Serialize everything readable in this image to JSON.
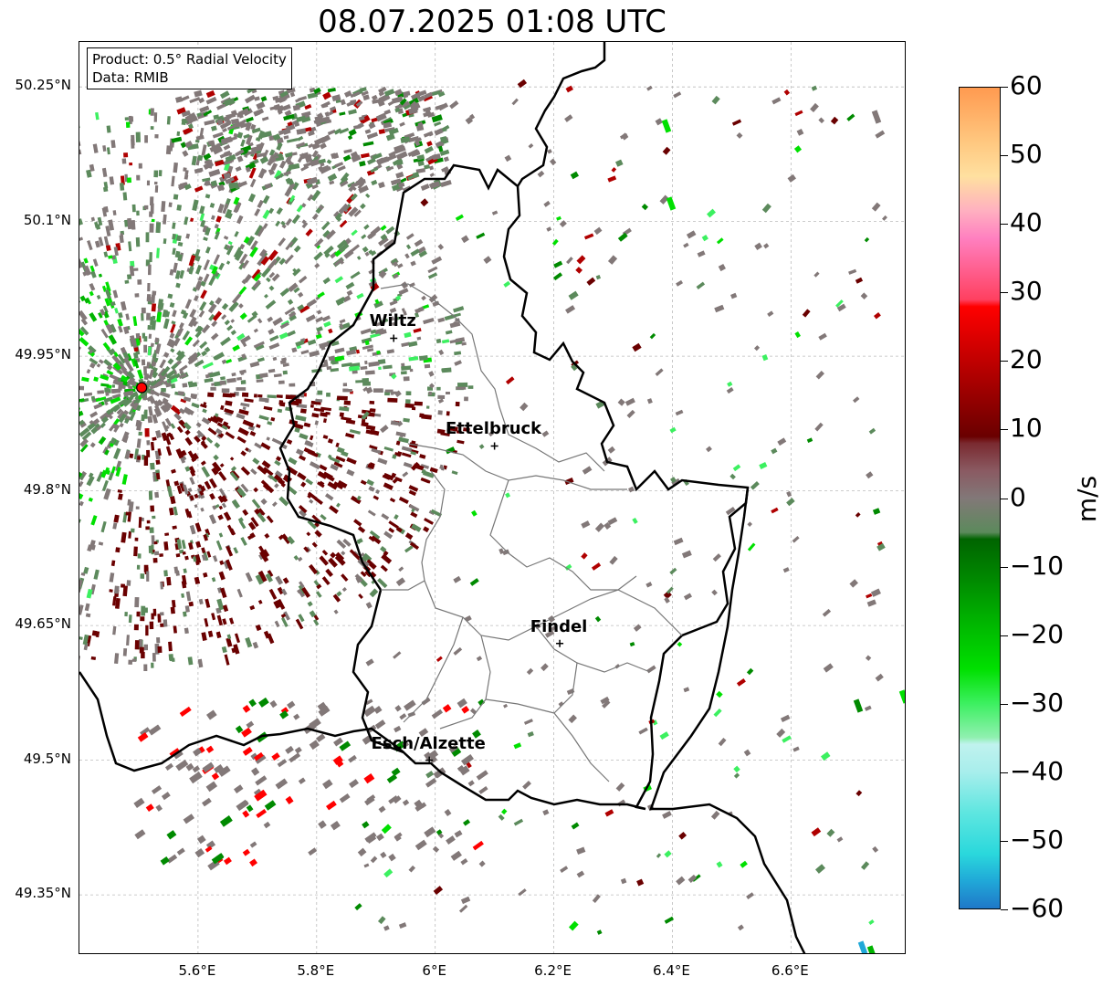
{
  "title": "08.07.2025 01:08 UTC",
  "info_box": {
    "product": "Product: 0.5° Radial Velocity",
    "source": "Data: RMIB"
  },
  "latitude_labels": [
    "50.25°N",
    "50.1°N",
    "49.95°N",
    "49.8°N",
    "49.65°N",
    "49.5°N",
    "49.35°N"
  ],
  "longitude_labels": [
    "5.6°E",
    "5.8°E",
    "6°E",
    "6.2°E",
    "6.4°E",
    "6.6°E"
  ],
  "cities": [
    {
      "name": "Wiltz",
      "lon": 5.93,
      "lat": 49.97
    },
    {
      "name": "Ettelbruck",
      "lon": 6.1,
      "lat": 49.85
    },
    {
      "name": "Findel",
      "lon": 6.21,
      "lat": 49.63
    },
    {
      "name": "Esch/Alzette",
      "lon": 5.99,
      "lat": 49.5
    }
  ],
  "radar_site": {
    "lon": 5.505,
    "lat": 49.915,
    "color": "#ff0000"
  },
  "colorbar": {
    "unit": "m/s",
    "min": -60,
    "max": 60,
    "ticks": [
      "60",
      "50",
      "40",
      "30",
      "20",
      "10",
      "0",
      "−10",
      "−20",
      "−30",
      "−40",
      "−50",
      "−60"
    ],
    "stops": [
      {
        "v": -60,
        "color": "#1f78c8"
      },
      {
        "v": -56,
        "color": "#20a8d8"
      },
      {
        "v": -52,
        "color": "#2ad8dc"
      },
      {
        "v": -46,
        "color": "#5ee6e0"
      },
      {
        "v": -40,
        "color": "#a8eeec"
      },
      {
        "v": -36,
        "color": "#c0f2ee"
      },
      {
        "v": -35,
        "color": "#90f0b0"
      },
      {
        "v": -30,
        "color": "#3cf060"
      },
      {
        "v": -25,
        "color": "#00e000"
      },
      {
        "v": -18,
        "color": "#00b400"
      },
      {
        "v": -12,
        "color": "#008a00"
      },
      {
        "v": -6,
        "color": "#006400"
      },
      {
        "v": -5,
        "color": "#5c8a5c"
      },
      {
        "v": 0,
        "color": "#827878"
      },
      {
        "v": 4,
        "color": "#8a5a62"
      },
      {
        "v": 8,
        "color": "#7a2a30"
      },
      {
        "v": 9,
        "color": "#6a0000"
      },
      {
        "v": 18,
        "color": "#b00000"
      },
      {
        "v": 28,
        "color": "#ff0000"
      },
      {
        "v": 29,
        "color": "#ff4060"
      },
      {
        "v": 38,
        "color": "#ff80c0"
      },
      {
        "v": 42,
        "color": "#ffb0c0"
      },
      {
        "v": 47,
        "color": "#ffe0a0"
      },
      {
        "v": 52,
        "color": "#ffc880"
      },
      {
        "v": 60,
        "color": "#ff9a50"
      }
    ]
  },
  "view": {
    "lon_min": 5.4,
    "lon_max": 6.795,
    "lat_min": 49.283,
    "lat_max": 50.3
  }
}
